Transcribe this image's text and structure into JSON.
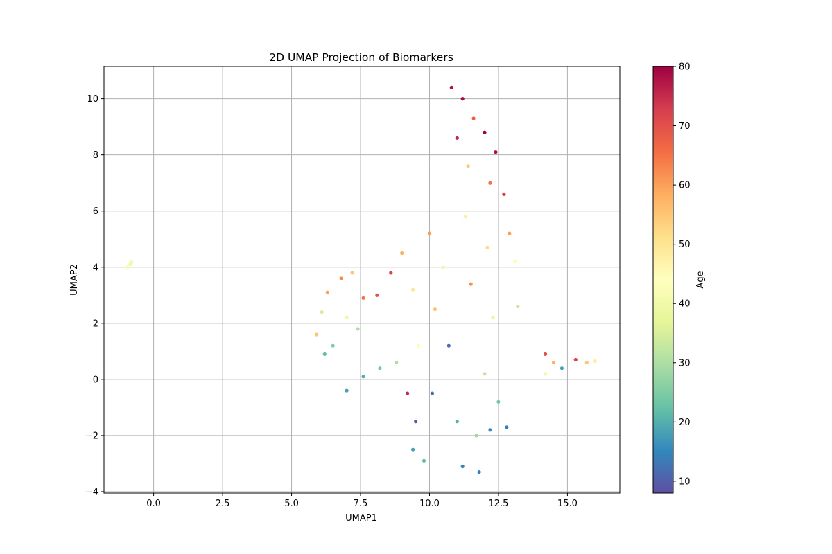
{
  "chart_data": {
    "type": "scatter",
    "title": "2D UMAP Projection of Biomarkers",
    "xlabel": "UMAP1",
    "ylabel": "UMAP2",
    "xlim": [
      -1.8,
      16.9
    ],
    "ylim": [
      -4.05,
      11.15
    ],
    "xticks": [
      0.0,
      2.5,
      5.0,
      7.5,
      10.0,
      12.5,
      15.0
    ],
    "xtick_labels": [
      "0.0",
      "2.5",
      "5.0",
      "7.5",
      "10.0",
      "12.5",
      "15.0"
    ],
    "yticks": [
      -4,
      -2,
      0,
      2,
      4,
      6,
      8,
      10
    ],
    "ytick_labels": [
      "−4",
      "−2",
      "0",
      "2",
      "4",
      "6",
      "8",
      "10"
    ],
    "grid": true,
    "colormap": "Spectral_r",
    "colorbar": {
      "label": "Age",
      "range": [
        8,
        80
      ],
      "ticks": [
        10,
        20,
        30,
        40,
        50,
        60,
        70,
        80
      ],
      "tick_labels": [
        "10",
        "20",
        "30",
        "40",
        "50",
        "60",
        "70",
        "80"
      ]
    },
    "colormap_stops": [
      "#5e4fa2",
      "#3288bd",
      "#66c2a5",
      "#abdda4",
      "#e6f598",
      "#ffffbf",
      "#fee08b",
      "#fdae61",
      "#f46d43",
      "#d53e4f",
      "#9e0142"
    ],
    "points": [
      {
        "x": -0.85,
        "y": 4.1,
        "c": 40
      },
      {
        "x": -0.95,
        "y": 4.0,
        "c": 41
      },
      {
        "x": -0.8,
        "y": 4.18,
        "c": 40
      },
      {
        "x": 5.9,
        "y": 1.6,
        "c": 55
      },
      {
        "x": 6.1,
        "y": 2.4,
        "c": 35
      },
      {
        "x": 6.3,
        "y": 3.1,
        "c": 60
      },
      {
        "x": 6.5,
        "y": 1.2,
        "c": 25
      },
      {
        "x": 6.8,
        "y": 3.6,
        "c": 62
      },
      {
        "x": 7.0,
        "y": 2.2,
        "c": 40
      },
      {
        "x": 7.2,
        "y": 3.8,
        "c": 55
      },
      {
        "x": 7.4,
        "y": 1.8,
        "c": 30
      },
      {
        "x": 7.6,
        "y": 2.9,
        "c": 65
      },
      {
        "x": 6.2,
        "y": 0.9,
        "c": 22
      },
      {
        "x": 8.1,
        "y": 3.0,
        "c": 70
      },
      {
        "x": 7.0,
        "y": -0.4,
        "c": 18
      },
      {
        "x": 7.6,
        "y": 0.1,
        "c": 20
      },
      {
        "x": 8.2,
        "y": 0.4,
        "c": 24
      },
      {
        "x": 8.8,
        "y": 0.6,
        "c": 30
      },
      {
        "x": 8.6,
        "y": 3.8,
        "c": 72
      },
      {
        "x": 9.0,
        "y": 4.5,
        "c": 58
      },
      {
        "x": 9.4,
        "y": 3.2,
        "c": 50
      },
      {
        "x": 9.6,
        "y": 1.2,
        "c": 45
      },
      {
        "x": 9.2,
        "y": -0.5,
        "c": 75
      },
      {
        "x": 9.5,
        "y": -1.5,
        "c": 10
      },
      {
        "x": 9.4,
        "y": -2.5,
        "c": 18
      },
      {
        "x": 9.8,
        "y": -2.9,
        "c": 22
      },
      {
        "x": 10.0,
        "y": 5.2,
        "c": 60
      },
      {
        "x": 10.2,
        "y": 2.5,
        "c": 55
      },
      {
        "x": 10.1,
        "y": -0.5,
        "c": 12
      },
      {
        "x": 10.5,
        "y": 4.0,
        "c": 40
      },
      {
        "x": 10.7,
        "y": 1.2,
        "c": 12
      },
      {
        "x": 10.8,
        "y": 10.4,
        "c": 78
      },
      {
        "x": 11.0,
        "y": 8.6,
        "c": 75
      },
      {
        "x": 11.2,
        "y": 10.0,
        "c": 79
      },
      {
        "x": 11.4,
        "y": 7.6,
        "c": 55
      },
      {
        "x": 11.6,
        "y": 9.3,
        "c": 68
      },
      {
        "x": 11.3,
        "y": 5.8,
        "c": 48
      },
      {
        "x": 11.5,
        "y": 3.4,
        "c": 62
      },
      {
        "x": 11.0,
        "y": -1.5,
        "c": 20
      },
      {
        "x": 11.2,
        "y": -3.1,
        "c": 15
      },
      {
        "x": 11.8,
        "y": -3.3,
        "c": 14
      },
      {
        "x": 11.7,
        "y": -2.0,
        "c": 28
      },
      {
        "x": 12.0,
        "y": 8.8,
        "c": 80
      },
      {
        "x": 12.2,
        "y": 7.0,
        "c": 65
      },
      {
        "x": 12.4,
        "y": 8.1,
        "c": 78
      },
      {
        "x": 12.1,
        "y": 4.7,
        "c": 52
      },
      {
        "x": 12.3,
        "y": 2.2,
        "c": 38
      },
      {
        "x": 12.0,
        "y": 0.2,
        "c": 32
      },
      {
        "x": 12.2,
        "y": -1.8,
        "c": 16
      },
      {
        "x": 12.5,
        "y": -0.8,
        "c": 24
      },
      {
        "x": 12.7,
        "y": 6.6,
        "c": 72
      },
      {
        "x": 12.9,
        "y": 5.2,
        "c": 60
      },
      {
        "x": 13.1,
        "y": 4.2,
        "c": 45
      },
      {
        "x": 13.2,
        "y": 2.6,
        "c": 33
      },
      {
        "x": 12.8,
        "y": -1.7,
        "c": 14
      },
      {
        "x": 14.2,
        "y": 0.9,
        "c": 70
      },
      {
        "x": 14.5,
        "y": 0.6,
        "c": 58
      },
      {
        "x": 14.2,
        "y": 0.2,
        "c": 40
      },
      {
        "x": 14.8,
        "y": 0.4,
        "c": 18
      },
      {
        "x": 15.3,
        "y": 0.7,
        "c": 72
      },
      {
        "x": 15.7,
        "y": 0.6,
        "c": 55
      },
      {
        "x": 16.0,
        "y": 0.65,
        "c": 48
      }
    ]
  }
}
